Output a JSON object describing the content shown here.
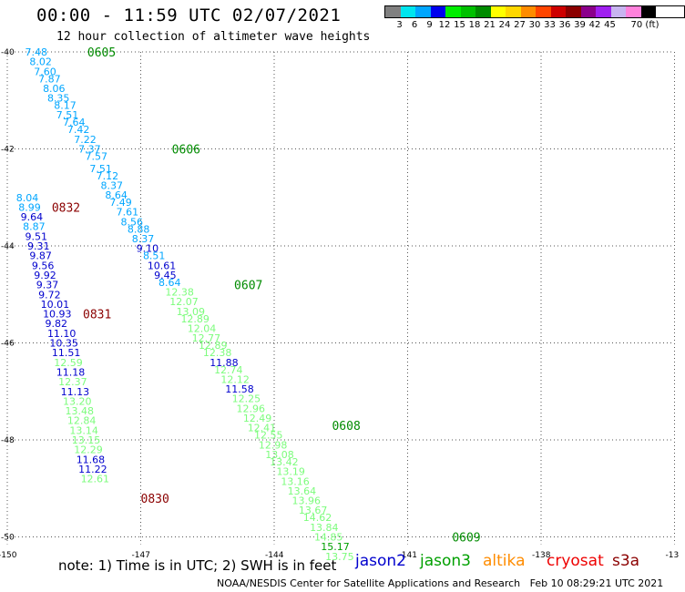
{
  "header": {
    "title": "00:00 - 11:59 UTC 02/07/2021",
    "subtitle": "12 hour collection of altimeter wave heights"
  },
  "legend": {
    "colors": [
      "#808080",
      "#00e5ee",
      "#00a6ff",
      "#0000ee",
      "#00ee00",
      "#00c000",
      "#008b00",
      "#ffff00",
      "#ffd700",
      "#ff8c00",
      "#ff4500",
      "#cd0000",
      "#8b0000",
      "#8b008b",
      "#a020f0",
      "#c8b4f0",
      "#ff82dc",
      "#000000"
    ],
    "labels": [
      "3",
      "6",
      "9",
      "12",
      "15",
      "18",
      "21",
      "24",
      "27",
      "30",
      "33",
      "36",
      "39",
      "42",
      "45",
      "70 (ft)"
    ],
    "unit": "(ft)"
  },
  "axes": {
    "lat_labels": [
      "-40",
      "-42",
      "-44",
      "-46",
      "-48",
      "-50"
    ],
    "lon_labels": [
      "-150",
      "-147",
      "-144",
      "-141",
      "-138",
      "-13"
    ]
  },
  "satellites": {
    "jason2": {
      "name": "jason2",
      "color": "#0000cd"
    },
    "jason3": {
      "name": "jason3",
      "color": "#00a000"
    },
    "altika": {
      "name": "altika",
      "color": "#ff8c00"
    },
    "cryosat": {
      "name": "cryosat",
      "color": "#ee0000"
    },
    "s3a": {
      "name": "s3a",
      "color": "#8b0000"
    }
  },
  "chart_data": {
    "type": "scatter",
    "title": "00:00 - 11:59 UTC 02/07/2021",
    "subtitle": "12 hour collection of altimeter wave heights",
    "unit": "ft",
    "xlim": [
      -150,
      -135
    ],
    "ylim": [
      -50,
      -40
    ],
    "time_labels": [
      {
        "text": "0605",
        "lon": -148.2,
        "lat": -40.0,
        "satellite": "jason3"
      },
      {
        "text": "0606",
        "lon": -146.3,
        "lat": -42.0,
        "satellite": "jason3"
      },
      {
        "text": "0832",
        "lon": -149.0,
        "lat": -43.2,
        "satellite": "s3a"
      },
      {
        "text": "0607",
        "lon": -144.9,
        "lat": -44.8,
        "satellite": "jason3"
      },
      {
        "text": "0831",
        "lon": -148.3,
        "lat": -45.4,
        "satellite": "s3a"
      },
      {
        "text": "0608",
        "lon": -142.7,
        "lat": -47.7,
        "satellite": "jason3"
      },
      {
        "text": "0830",
        "lon": -147.0,
        "lat": -49.2,
        "satellite": "s3a"
      },
      {
        "text": "0609",
        "lon": -140.0,
        "lat": -50.0,
        "satellite": "jason3"
      }
    ],
    "points": [
      {
        "lon": -149.6,
        "lat": -40.0,
        "swh": "7.48",
        "color": "#00a6ff"
      },
      {
        "lon": -149.5,
        "lat": -40.2,
        "swh": "8.02",
        "color": "#00a6ff"
      },
      {
        "lon": -149.4,
        "lat": -40.4,
        "swh": "7.60",
        "color": "#00a6ff"
      },
      {
        "lon": -149.3,
        "lat": -40.55,
        "swh": "7.87",
        "color": "#00a6ff"
      },
      {
        "lon": -149.2,
        "lat": -40.75,
        "swh": "8.06",
        "color": "#00a6ff"
      },
      {
        "lon": -149.1,
        "lat": -40.95,
        "swh": "8.35",
        "color": "#00a6ff"
      },
      {
        "lon": -148.95,
        "lat": -41.1,
        "swh": "8.17",
        "color": "#00a6ff"
      },
      {
        "lon": -148.9,
        "lat": -41.3,
        "swh": "7.51",
        "color": "#00a6ff"
      },
      {
        "lon": -148.75,
        "lat": -41.45,
        "swh": "7.64",
        "color": "#00a6ff"
      },
      {
        "lon": -148.65,
        "lat": -41.6,
        "swh": "7.42",
        "color": "#00a6ff"
      },
      {
        "lon": -148.5,
        "lat": -41.8,
        "swh": "7.22",
        "color": "#00a6ff"
      },
      {
        "lon": -148.4,
        "lat": -42.0,
        "swh": "7.37",
        "color": "#00a6ff"
      },
      {
        "lon": -148.25,
        "lat": -42.15,
        "swh": "7.57",
        "color": "#00a6ff"
      },
      {
        "lon": -148.15,
        "lat": -42.4,
        "swh": "7.51",
        "color": "#00a6ff"
      },
      {
        "lon": -148.0,
        "lat": -42.55,
        "swh": "7.12",
        "color": "#00a6ff"
      },
      {
        "lon": -147.9,
        "lat": -42.75,
        "swh": "8.37",
        "color": "#00a6ff"
      },
      {
        "lon": -147.8,
        "lat": -42.95,
        "swh": "8.64",
        "color": "#00a6ff"
      },
      {
        "lon": -147.7,
        "lat": -43.1,
        "swh": "7.49",
        "color": "#00a6ff"
      },
      {
        "lon": -147.55,
        "lat": -43.3,
        "swh": "7.61",
        "color": "#00a6ff"
      },
      {
        "lon": -147.45,
        "lat": -43.5,
        "swh": "8.56",
        "color": "#00a6ff"
      },
      {
        "lon": -147.3,
        "lat": -43.65,
        "swh": "8.88",
        "color": "#00a6ff"
      },
      {
        "lon": -147.2,
        "lat": -43.85,
        "swh": "8.37",
        "color": "#00a6ff"
      },
      {
        "lon": -147.1,
        "lat": -44.05,
        "swh": "9.10",
        "color": "#0000cd"
      },
      {
        "lon": -146.95,
        "lat": -44.2,
        "swh": "8.51",
        "color": "#00a6ff"
      },
      {
        "lon": -146.85,
        "lat": -44.4,
        "swh": "10.61",
        "color": "#0000cd"
      },
      {
        "lon": -146.7,
        "lat": -44.6,
        "swh": "9.45",
        "color": "#0000cd"
      },
      {
        "lon": -146.6,
        "lat": -44.75,
        "swh": "8.64",
        "color": "#00a6ff"
      },
      {
        "lon": -146.45,
        "lat": -44.95,
        "swh": "12.38",
        "color": "#7cfc7c"
      },
      {
        "lon": -146.35,
        "lat": -45.15,
        "swh": "12.07",
        "color": "#7cfc7c"
      },
      {
        "lon": -146.2,
        "lat": -45.35,
        "swh": "13.09",
        "color": "#7cfc7c"
      },
      {
        "lon": -146.1,
        "lat": -45.5,
        "swh": "12.89",
        "color": "#7cfc7c"
      },
      {
        "lon": -145.95,
        "lat": -45.7,
        "swh": "12.04",
        "color": "#7cfc7c"
      },
      {
        "lon": -145.85,
        "lat": -45.9,
        "swh": "12.77",
        "color": "#7cfc7c"
      },
      {
        "lon": -145.7,
        "lat": -46.05,
        "swh": "12.89",
        "color": "#7cfc7c"
      },
      {
        "lon": -145.6,
        "lat": -46.2,
        "swh": "12.38",
        "color": "#7cfc7c"
      },
      {
        "lon": -145.45,
        "lat": -46.4,
        "swh": "11.88",
        "color": "#0000cd"
      },
      {
        "lon": -145.35,
        "lat": -46.55,
        "swh": "12.74",
        "color": "#7cfc7c"
      },
      {
        "lon": -145.2,
        "lat": -46.75,
        "swh": "12.12",
        "color": "#7cfc7c"
      },
      {
        "lon": -145.1,
        "lat": -46.95,
        "swh": "11.58",
        "color": "#0000cd"
      },
      {
        "lon": -144.95,
        "lat": -47.15,
        "swh": "12.25",
        "color": "#7cfc7c"
      },
      {
        "lon": -144.85,
        "lat": -47.35,
        "swh": "12.96",
        "color": "#7cfc7c"
      },
      {
        "lon": -144.7,
        "lat": -47.55,
        "swh": "12.49",
        "color": "#7cfc7c"
      },
      {
        "lon": -144.6,
        "lat": -47.75,
        "swh": "12.41",
        "color": "#7cfc7c"
      },
      {
        "lon": -144.45,
        "lat": -47.9,
        "swh": "12.55",
        "color": "#7cfc7c"
      },
      {
        "lon": -144.35,
        "lat": -48.1,
        "swh": "12.98",
        "color": "#7cfc7c"
      },
      {
        "lon": -144.2,
        "lat": -48.3,
        "swh": "13.08",
        "color": "#7cfc7c"
      },
      {
        "lon": -144.1,
        "lat": -48.45,
        "swh": "13.42",
        "color": "#7cfc7c"
      },
      {
        "lon": -143.95,
        "lat": -48.65,
        "swh": "13.19",
        "color": "#7cfc7c"
      },
      {
        "lon": -143.85,
        "lat": -48.85,
        "swh": "13.16",
        "color": "#7cfc7c"
      },
      {
        "lon": -143.7,
        "lat": -49.05,
        "swh": "13.64",
        "color": "#7cfc7c"
      },
      {
        "lon": -143.6,
        "lat": -49.25,
        "swh": "13.96",
        "color": "#7cfc7c"
      },
      {
        "lon": -143.45,
        "lat": -49.45,
        "swh": "13.67",
        "color": "#7cfc7c"
      },
      {
        "lon": -143.35,
        "lat": -49.6,
        "swh": "14.62",
        "color": "#7cfc7c"
      },
      {
        "lon": -143.2,
        "lat": -49.8,
        "swh": "13.84",
        "color": "#7cfc7c"
      },
      {
        "lon": -143.1,
        "lat": -50.0,
        "swh": "14.85",
        "color": "#7cfc7c"
      },
      {
        "lon": -142.95,
        "lat": -50.2,
        "swh": "15.17",
        "color": "#00a000"
      },
      {
        "lon": -142.85,
        "lat": -50.4,
        "swh": "13.75",
        "color": "#7cfc7c"
      },
      {
        "lon": -149.8,
        "lat": -43.0,
        "swh": "8.04",
        "color": "#00a6ff"
      },
      {
        "lon": -149.75,
        "lat": -43.2,
        "swh": "8.99",
        "color": "#00a6ff"
      },
      {
        "lon": -149.7,
        "lat": -43.4,
        "swh": "9.64",
        "color": "#0000cd"
      },
      {
        "lon": -149.65,
        "lat": -43.6,
        "swh": "8.87",
        "color": "#00a6ff"
      },
      {
        "lon": -149.6,
        "lat": -43.8,
        "swh": "9.51",
        "color": "#0000cd"
      },
      {
        "lon": -149.55,
        "lat": -44.0,
        "swh": "9.31",
        "color": "#0000cd"
      },
      {
        "lon": -149.5,
        "lat": -44.2,
        "swh": "9.87",
        "color": "#0000cd"
      },
      {
        "lon": -149.45,
        "lat": -44.4,
        "swh": "9.56",
        "color": "#0000cd"
      },
      {
        "lon": -149.4,
        "lat": -44.6,
        "swh": "9.92",
        "color": "#0000cd"
      },
      {
        "lon": -149.35,
        "lat": -44.8,
        "swh": "9.37",
        "color": "#0000cd"
      },
      {
        "lon": -149.3,
        "lat": -45.0,
        "swh": "9.72",
        "color": "#0000cd"
      },
      {
        "lon": -149.25,
        "lat": -45.2,
        "swh": "10.01",
        "color": "#0000cd"
      },
      {
        "lon": -149.2,
        "lat": -45.4,
        "swh": "10.93",
        "color": "#0000cd"
      },
      {
        "lon": -149.15,
        "lat": -45.6,
        "swh": "9.82",
        "color": "#0000cd"
      },
      {
        "lon": -149.1,
        "lat": -45.8,
        "swh": "11.10",
        "color": "#0000cd"
      },
      {
        "lon": -149.05,
        "lat": -46.0,
        "swh": "10.35",
        "color": "#0000cd"
      },
      {
        "lon": -149.0,
        "lat": -46.2,
        "swh": "11.51",
        "color": "#0000cd"
      },
      {
        "lon": -148.95,
        "lat": -46.4,
        "swh": "12.59",
        "color": "#7cfc7c"
      },
      {
        "lon": -148.9,
        "lat": -46.6,
        "swh": "11.18",
        "color": "#0000cd"
      },
      {
        "lon": -148.85,
        "lat": -46.8,
        "swh": "12.37",
        "color": "#7cfc7c"
      },
      {
        "lon": -148.8,
        "lat": -47.0,
        "swh": "11.13",
        "color": "#0000cd"
      },
      {
        "lon": -148.75,
        "lat": -47.2,
        "swh": "13.20",
        "color": "#7cfc7c"
      },
      {
        "lon": -148.7,
        "lat": -47.4,
        "swh": "13.48",
        "color": "#7cfc7c"
      },
      {
        "lon": -148.65,
        "lat": -47.6,
        "swh": "12.84",
        "color": "#7cfc7c"
      },
      {
        "lon": -148.6,
        "lat": -47.8,
        "swh": "13.14",
        "color": "#7cfc7c"
      },
      {
        "lon": -148.55,
        "lat": -48.0,
        "swh": "13.15",
        "color": "#7cfc7c"
      },
      {
        "lon": -148.5,
        "lat": -48.2,
        "swh": "12.29",
        "color": "#7cfc7c"
      },
      {
        "lon": -148.45,
        "lat": -48.4,
        "swh": "11.68",
        "color": "#0000cd"
      },
      {
        "lon": -148.4,
        "lat": -48.6,
        "swh": "11.22",
        "color": "#0000cd"
      },
      {
        "lon": -148.35,
        "lat": -48.8,
        "swh": "12.61",
        "color": "#7cfc7c"
      }
    ]
  },
  "footer": {
    "note": "note: 1) Time is in UTC; 2) SWH is in feet",
    "credit": "NOAA/NESDIS Center for Satellite Applications and Research   Feb 10 08:29:21 UTC 2021"
  }
}
